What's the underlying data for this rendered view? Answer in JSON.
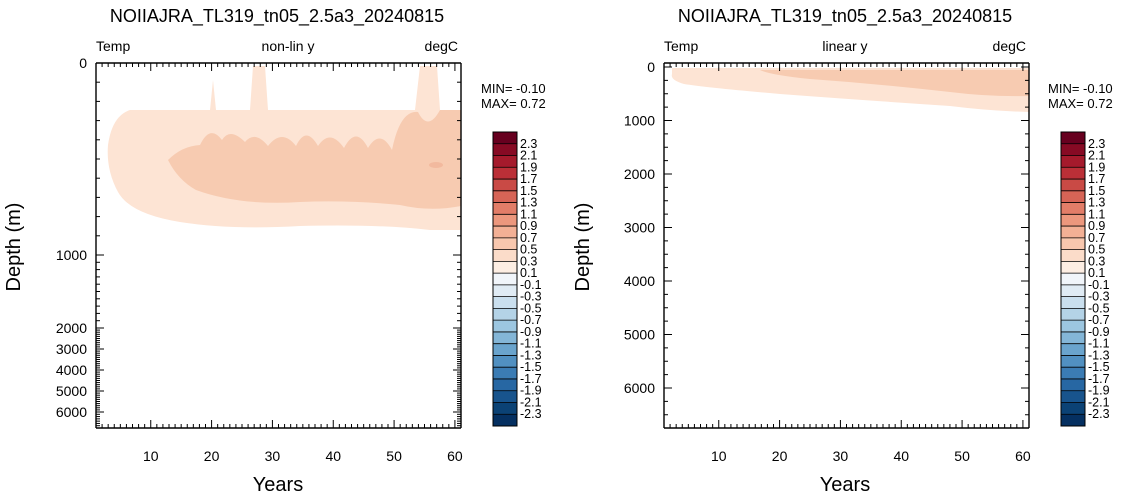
{
  "chart_data": [
    {
      "type": "heatmap",
      "title": "NOIIAJRA_TL319_tn05_2.5a3_20240815",
      "header_left": "Temp",
      "header_center": "non-lin y",
      "header_right": "degC",
      "xlabel": "Years",
      "ylabel": "Depth (m)",
      "xlim": [
        1,
        61
      ],
      "ylim": [
        6700,
        0
      ],
      "y_scale": "non-linear",
      "x_ticks": [
        "10",
        "20",
        "30",
        "40",
        "50",
        "60"
      ],
      "y_ticks": [
        "0",
        "1000",
        "2000",
        "3000",
        "4000",
        "5000",
        "6000"
      ],
      "min_label": "MIN= -0.10",
      "max_label": "MAX=  0.72",
      "contour_regions": [
        {
          "level": "0.1 to 0.3",
          "color": "#fde4d4",
          "approx_depth_range": [
            0,
            900
          ]
        },
        {
          "level": "0.3 to 0.5",
          "color": "#f7cbb1",
          "approx_depth_range": [
            300,
            750
          ]
        }
      ]
    },
    {
      "type": "heatmap",
      "title": "NOIIAJRA_TL319_tn05_2.5a3_20240815",
      "header_left": "Temp",
      "header_center": "linear y",
      "header_right": "degC",
      "xlabel": "Years",
      "ylabel": "Depth (m)",
      "xlim": [
        1,
        61
      ],
      "ylim": [
        6700,
        0
      ],
      "y_scale": "linear",
      "x_ticks": [
        "10",
        "20",
        "30",
        "40",
        "50",
        "60"
      ],
      "y_ticks": [
        "0",
        "1000",
        "2000",
        "3000",
        "4000",
        "5000",
        "6000"
      ],
      "min_label": "MIN= -0.10",
      "max_label": "MAX=  0.72",
      "contour_regions": [
        {
          "level": "0.1 to 0.3",
          "color": "#fde4d4",
          "approx_depth_range": [
            0,
            900
          ]
        },
        {
          "level": "0.3 to 0.5",
          "color": "#f7cbb1",
          "approx_depth_range": [
            100,
            750
          ]
        }
      ]
    }
  ],
  "colorbar": {
    "labels": [
      "2.3",
      "2.1",
      "1.9",
      "1.7",
      "1.5",
      "1.3",
      "1.1",
      "0.9",
      "0.7",
      "0.5",
      "0.3",
      "0.1",
      "-0.1",
      "-0.3",
      "-0.5",
      "-0.7",
      "-0.9",
      "-1.1",
      "-1.3",
      "-1.5",
      "-1.7",
      "-1.9",
      "-2.1",
      "-2.3"
    ],
    "colors": [
      "#67001f",
      "#870a24",
      "#a51a2c",
      "#bb2f37",
      "#c94a45",
      "#d66456",
      "#e27d68",
      "#ec977d",
      "#f3b095",
      "#f8c7ae",
      "#fbdcc9",
      "#fdeee3",
      "#f1f5fa",
      "#e0ebf4",
      "#cadfee",
      "#b4d3e7",
      "#9cc6e0",
      "#84b6d7",
      "#6aa4cd",
      "#5190c1",
      "#3b7cb4",
      "#2767a3",
      "#18548d",
      "#0b4275",
      "#053061"
    ]
  }
}
